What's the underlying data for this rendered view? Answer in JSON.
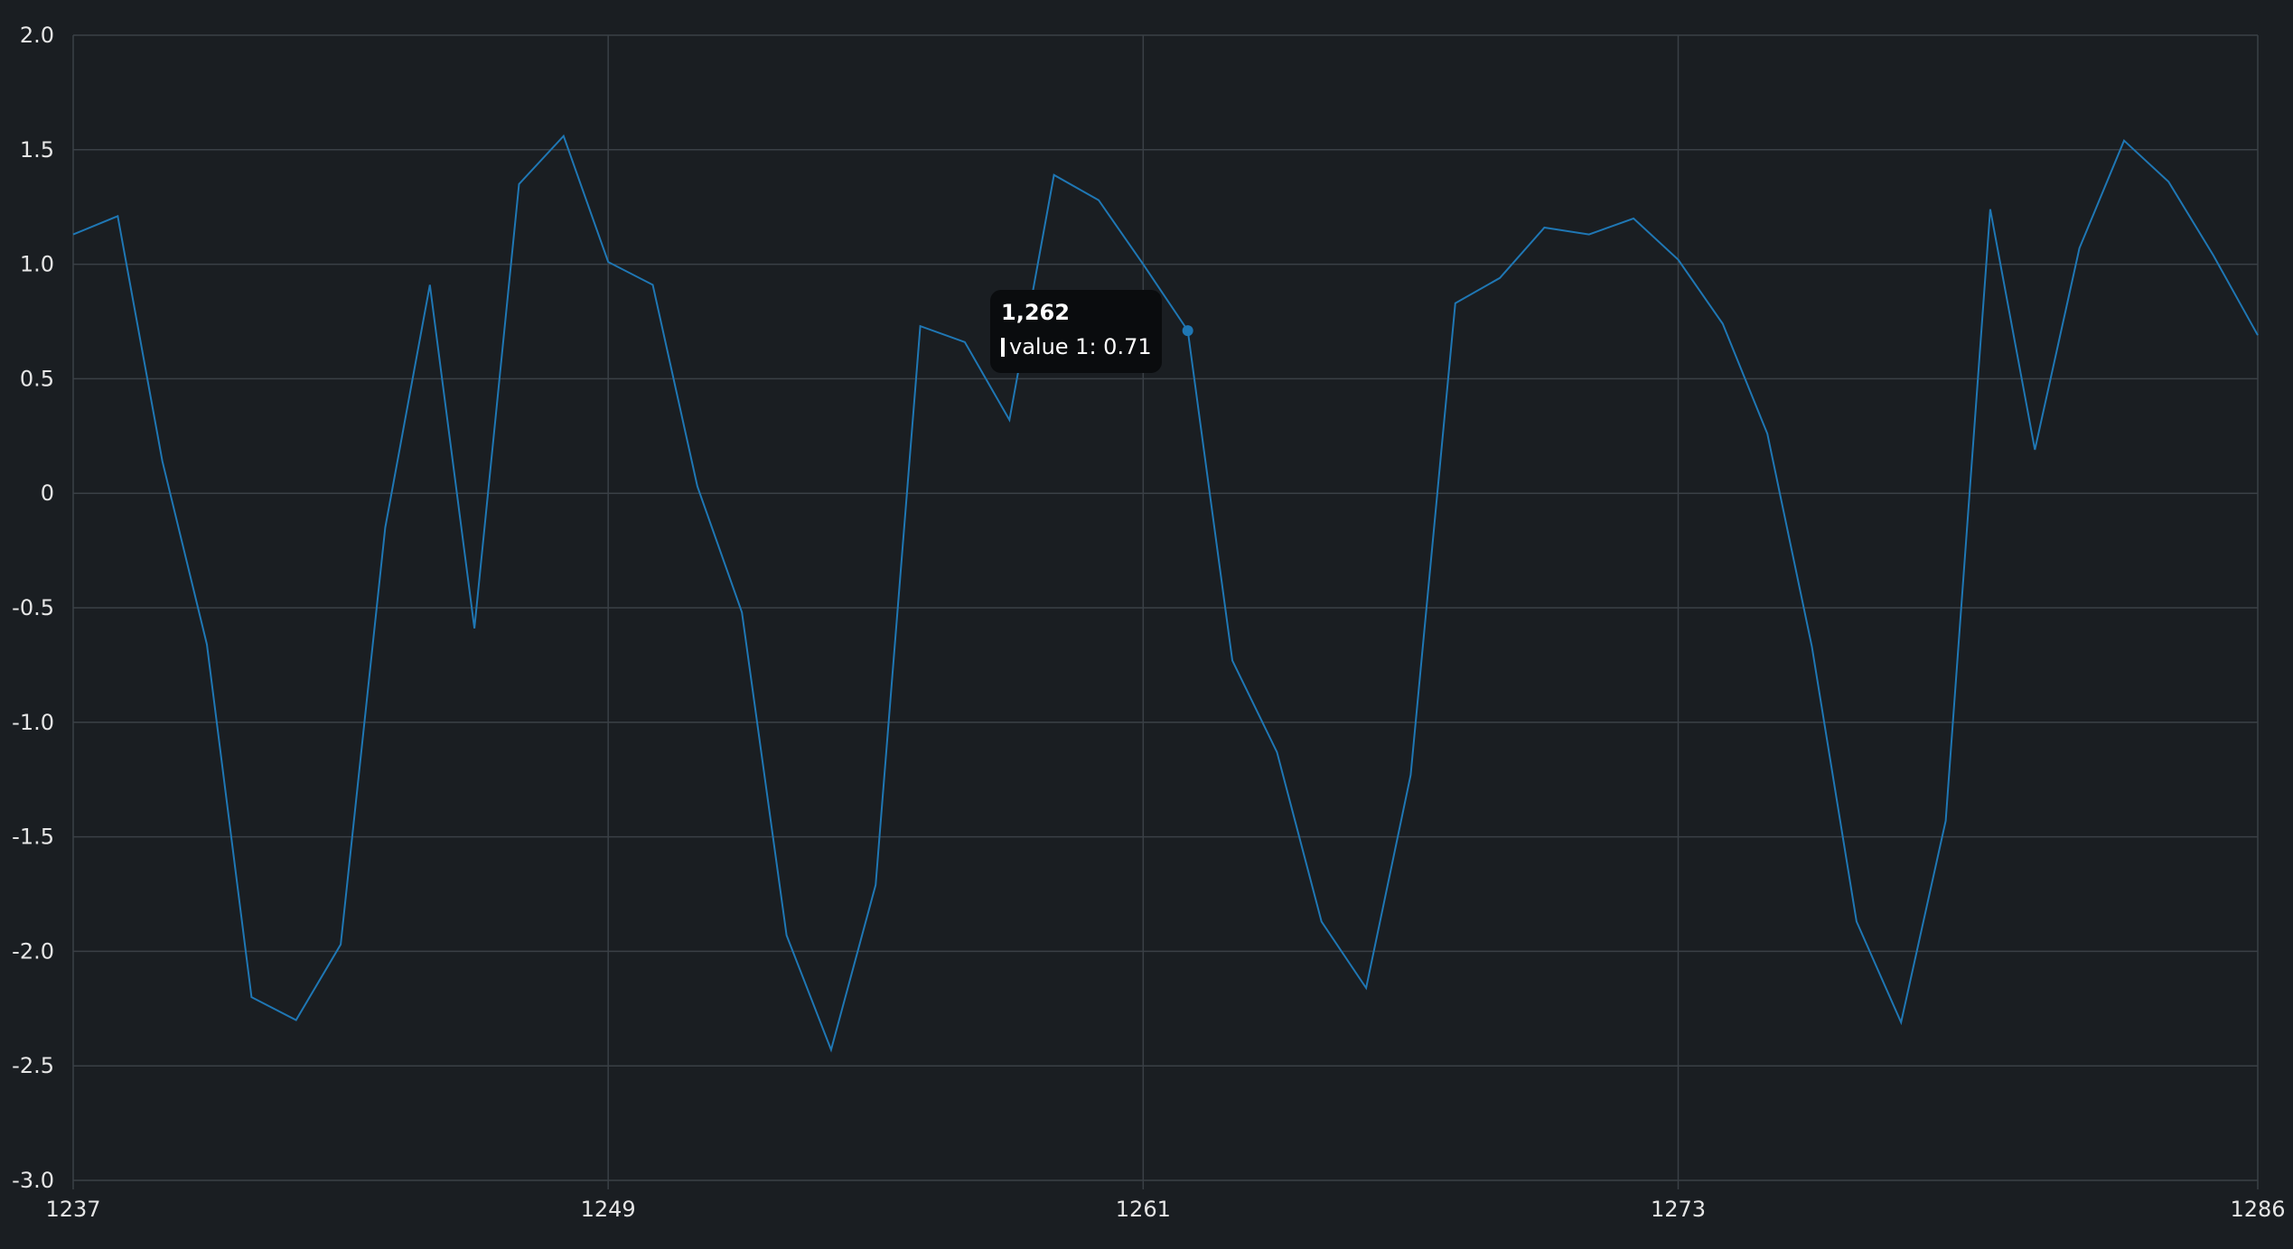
{
  "chart_data": {
    "type": "line",
    "title": "",
    "xlabel": "",
    "ylabel": "",
    "xlim": [
      1237,
      1286
    ],
    "ylim": [
      -3.0,
      2.0
    ],
    "x_ticks": [
      "1237",
      "1249",
      "1261",
      "1273",
      "1286"
    ],
    "x_tick_values": [
      1237,
      1249,
      1261,
      1273,
      1286
    ],
    "y_ticks": [
      "2.0",
      "1.5",
      "1.0",
      "0.5",
      "0",
      "-0.5",
      "-1.0",
      "-1.5",
      "-2.0",
      "-2.5",
      "-3.0"
    ],
    "y_tick_values": [
      2.0,
      1.5,
      1.0,
      0.5,
      0,
      -0.5,
      -1.0,
      -1.5,
      -2.0,
      -2.5,
      -3.0
    ],
    "grid": true,
    "series": [
      {
        "name": "value 1",
        "color": "#1f77b4",
        "x": [
          1237,
          1238,
          1239,
          1240,
          1241,
          1242,
          1243,
          1244,
          1245,
          1246,
          1247,
          1248,
          1249,
          1250,
          1251,
          1252,
          1253,
          1254,
          1255,
          1256,
          1257,
          1258,
          1259,
          1260,
          1261,
          1262,
          1263,
          1264,
          1265,
          1266,
          1267,
          1268,
          1269,
          1270,
          1271,
          1272,
          1273,
          1274,
          1275,
          1276,
          1277,
          1278,
          1279,
          1280,
          1281,
          1282,
          1283,
          1284,
          1285,
          1286
        ],
        "values": [
          1.13,
          1.21,
          0.14,
          -0.66,
          -2.2,
          -2.3,
          -1.97,
          -0.15,
          0.91,
          -0.59,
          1.35,
          1.56,
          1.01,
          0.91,
          0.03,
          -0.52,
          -1.93,
          -2.43,
          -1.71,
          0.73,
          0.66,
          0.32,
          1.39,
          1.28,
          1.0,
          0.71,
          -0.73,
          -1.13,
          -1.87,
          -2.16,
          -1.23,
          0.83,
          0.94,
          1.16,
          1.13,
          1.2,
          1.02,
          0.74,
          0.26,
          -0.67,
          -1.87,
          -2.31,
          -1.43,
          1.24,
          0.19,
          1.07,
          1.54,
          1.36,
          1.04,
          0.69
        ]
      }
    ],
    "tooltip": {
      "title": "1,262",
      "label": "value 1: 0.71",
      "x": 1262,
      "y": 0.71
    }
  }
}
